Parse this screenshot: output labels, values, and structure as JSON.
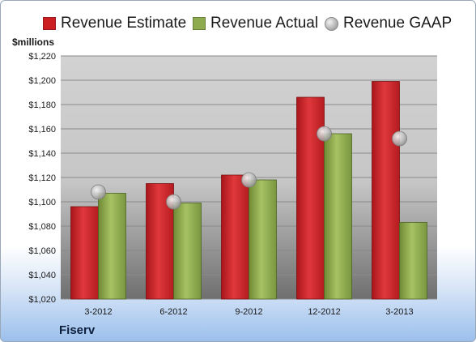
{
  "legend": {
    "estimate": "Revenue Estimate",
    "actual": "Revenue Actual",
    "gaap": "Revenue GAAP"
  },
  "unit_label": "$millions",
  "brand": "Fiserv",
  "colors": {
    "estimate": "#cc1f24",
    "actual": "#8fab4f",
    "gaap": "#bdbdbd"
  },
  "chart_data": {
    "type": "bar",
    "categories": [
      "3-2012",
      "6-2012",
      "9-2012",
      "12-2012",
      "3-2013"
    ],
    "series": [
      {
        "name": "Revenue Estimate",
        "values": [
          1096,
          1115,
          1122,
          1186,
          1199
        ]
      },
      {
        "name": "Revenue Actual",
        "values": [
          1107,
          1099,
          1118,
          1156,
          1083
        ]
      },
      {
        "name": "Revenue GAAP",
        "values": [
          1108,
          1100,
          1118,
          1156,
          1152
        ]
      }
    ],
    "ylabel": "$millions",
    "ylim": [
      1020,
      1220
    ],
    "yticks": [
      "$1,020",
      "$1,040",
      "$1,060",
      "$1,080",
      "$1,100",
      "$1,120",
      "$1,140",
      "$1,160",
      "$1,180",
      "$1,200",
      "$1,220"
    ],
    "grid": true,
    "legend_position": "top"
  }
}
